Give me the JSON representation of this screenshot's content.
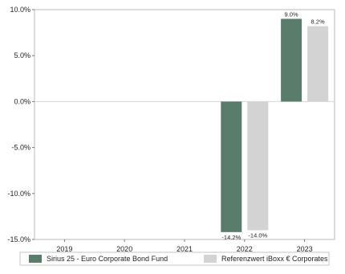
{
  "chart_data": {
    "type": "bar",
    "categories": [
      "2019",
      "2020",
      "2021",
      "2022",
      "2023"
    ],
    "series": [
      {
        "name": "Sirius 25 - Euro Corporate Bond Fund",
        "color": "#5a7d6b",
        "values": [
          null,
          null,
          null,
          -14.2,
          9.0
        ],
        "labels": [
          "",
          "",
          "",
          "-14.2%",
          "9.0%"
        ]
      },
      {
        "name": "Referenzwert iBoxx € Corporates",
        "color": "#d3d3d3",
        "values": [
          null,
          null,
          null,
          -14.0,
          8.2
        ],
        "labels": [
          "",
          "",
          "",
          "-14.0%",
          "8.2%"
        ]
      }
    ],
    "y_ticks": [
      "10.0%",
      "5.0%",
      "0.0%",
      "-5.0%",
      "-10.0%",
      "-15.0%"
    ],
    "ylim": [
      -15,
      10
    ],
    "grid": false,
    "legend_position": "bottom",
    "title": "",
    "xlabel": "",
    "ylabel": ""
  }
}
